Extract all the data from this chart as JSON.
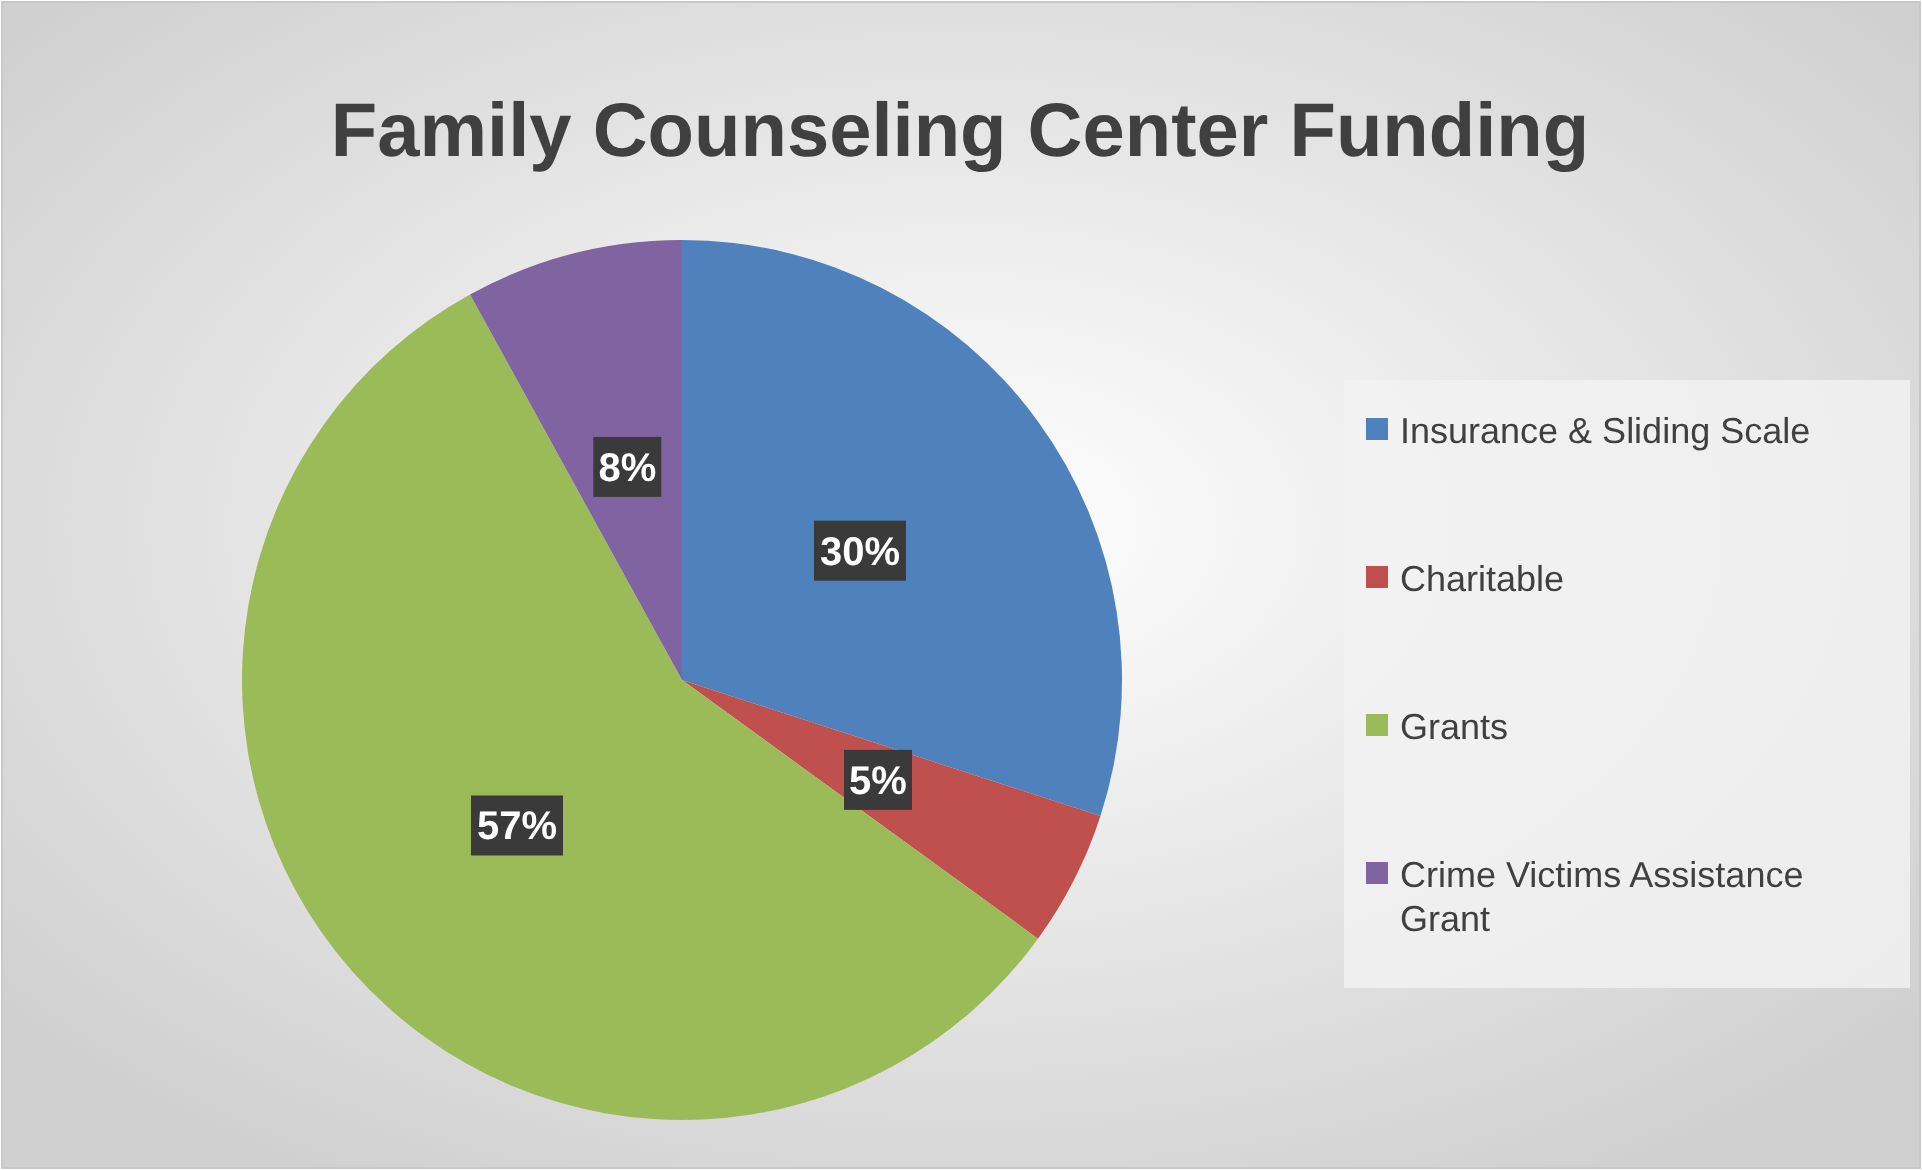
{
  "chart_data": {
    "type": "pie",
    "title": "Family Counseling Center Funding",
    "categories": [
      "Insurance & Sliding Scale",
      "Charitable",
      "Grants",
      "Crime Victims Assistance Grant"
    ],
    "values": [
      30,
      5,
      57,
      8
    ],
    "colors": [
      "#4f81bd",
      "#c0504d",
      "#9bbb59",
      "#8064a2"
    ],
    "value_labels": [
      "30%",
      "5%",
      "57%",
      "8%"
    ],
    "legend": "right"
  }
}
